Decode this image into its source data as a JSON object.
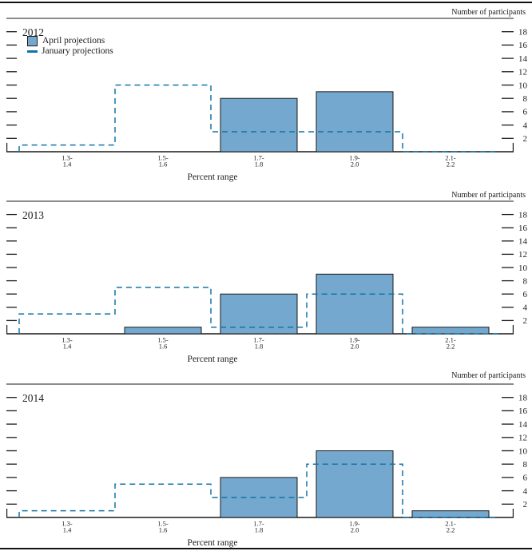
{
  "page": {
    "top_right_axis_title": "Number of participants",
    "x_axis_title": "Percent range"
  },
  "legend": {
    "april_label": "April projections",
    "january_label": "January projections"
  },
  "colors": {
    "april_fill": "#74a8cf",
    "april_border": "#1a1a1a",
    "january_line": "#1274a6",
    "axis": "#1a1a1a",
    "text": "#1c1c1c"
  },
  "chart_data": [
    {
      "type": "bar",
      "title": "2012",
      "year": "2012",
      "categories": [
        "1.3–1.4",
        "1.5–1.6",
        "1.7–1.8",
        "1.9–2.0",
        "2.1–2.2"
      ],
      "cat_lines": [
        [
          "1.3-",
          "1.4"
        ],
        [
          "1.5-",
          "1.6"
        ],
        [
          "1.7-",
          "1.8"
        ],
        [
          "1.9-",
          "2.0"
        ],
        [
          "2.1-",
          "2.2"
        ]
      ],
      "series": [
        {
          "name": "April projections",
          "style": "filled-bar",
          "values": [
            0,
            0,
            8,
            9,
            0
          ]
        },
        {
          "name": "January projections",
          "style": "dashed-step-outline",
          "values": [
            1,
            10,
            3,
            3,
            0
          ]
        }
      ],
      "xlabel": "Percent range",
      "ylabel": "Number of participants",
      "yticks": [
        2,
        4,
        6,
        8,
        10,
        12,
        14,
        16,
        18
      ],
      "ylim": [
        0,
        20
      ],
      "legend_position": "top-left",
      "grid": false
    },
    {
      "type": "bar",
      "title": "2013",
      "year": "2013",
      "categories": [
        "1.3–1.4",
        "1.5–1.6",
        "1.7–1.8",
        "1.9–2.0",
        "2.1–2.2"
      ],
      "cat_lines": [
        [
          "1.3-",
          "1.4"
        ],
        [
          "1.5-",
          "1.6"
        ],
        [
          "1.7-",
          "1.8"
        ],
        [
          "1.9-",
          "2.0"
        ],
        [
          "2.1-",
          "2.2"
        ]
      ],
      "series": [
        {
          "name": "April projections",
          "style": "filled-bar",
          "values": [
            0,
            1,
            6,
            9,
            1
          ]
        },
        {
          "name": "January projections",
          "style": "dashed-step-outline",
          "values": [
            3,
            7,
            1,
            6,
            0
          ]
        }
      ],
      "xlabel": "Percent range",
      "ylabel": "Number of participants",
      "yticks": [
        2,
        4,
        6,
        8,
        10,
        12,
        14,
        16,
        18
      ],
      "ylim": [
        0,
        20
      ],
      "legend_position": "none",
      "grid": false
    },
    {
      "type": "bar",
      "title": "2014",
      "year": "2014",
      "categories": [
        "1.3–1.4",
        "1.5–1.6",
        "1.7–1.8",
        "1.9–2.0",
        "2.1–2.2"
      ],
      "cat_lines": [
        [
          "1.3-",
          "1.4"
        ],
        [
          "1.5-",
          "1.6"
        ],
        [
          "1.7-",
          "1.8"
        ],
        [
          "1.9-",
          "2.0"
        ],
        [
          "2.1-",
          "2.2"
        ]
      ],
      "series": [
        {
          "name": "April projections",
          "style": "filled-bar",
          "values": [
            0,
            0,
            6,
            10,
            1
          ]
        },
        {
          "name": "January projections",
          "style": "dashed-step-outline",
          "values": [
            1,
            5,
            3,
            8,
            0
          ]
        }
      ],
      "xlabel": "Percent range",
      "ylabel": "Number of participants",
      "yticks": [
        2,
        4,
        6,
        8,
        10,
        12,
        14,
        16,
        18
      ],
      "ylim": [
        0,
        20
      ],
      "legend_position": "none",
      "grid": false
    }
  ]
}
